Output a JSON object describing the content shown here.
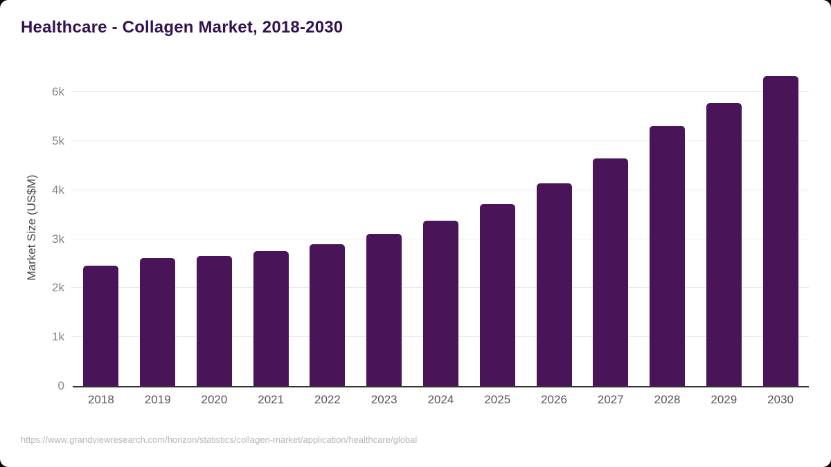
{
  "window": {
    "background_color": "#000000",
    "card_color": "#ffffff"
  },
  "header": {
    "title": "Healthcare - Collagen Market, 2018-2030",
    "title_color": "#321251"
  },
  "footer": {
    "source_url": "https://www.grandviewresearch.com/horizon/statistics/collagen-market/application/healthcare/global"
  },
  "chart_data": {
    "type": "bar",
    "title": "Healthcare - Collagen Market, 2018-2030",
    "xlabel": "",
    "ylabel": "Market Size (US$M)",
    "categories": [
      "2018",
      "2019",
      "2020",
      "2021",
      "2022",
      "2023",
      "2024",
      "2025",
      "2026",
      "2027",
      "2028",
      "2029",
      "2030"
    ],
    "values": [
      2450,
      2610,
      2660,
      2760,
      2900,
      3100,
      3370,
      3720,
      4140,
      4650,
      5310,
      5780,
      6320
    ],
    "ylim": [
      0,
      6466
    ],
    "yticks": [
      {
        "value": 0,
        "label": "0"
      },
      {
        "value": 1000,
        "label": "1k"
      },
      {
        "value": 2000,
        "label": "2k"
      },
      {
        "value": 3000,
        "label": "3k"
      },
      {
        "value": 4000,
        "label": "4k"
      },
      {
        "value": 5000,
        "label": "5k"
      },
      {
        "value": 6000,
        "label": "6k"
      }
    ],
    "grid": true,
    "legend": false,
    "bar_color": "#4a1458",
    "grid_color": "#e9e9e9",
    "axis_line_color": "#333333",
    "y_tick_color": "#828282",
    "x_tick_color": "#555555",
    "y_axis_title_color": "#474747"
  }
}
